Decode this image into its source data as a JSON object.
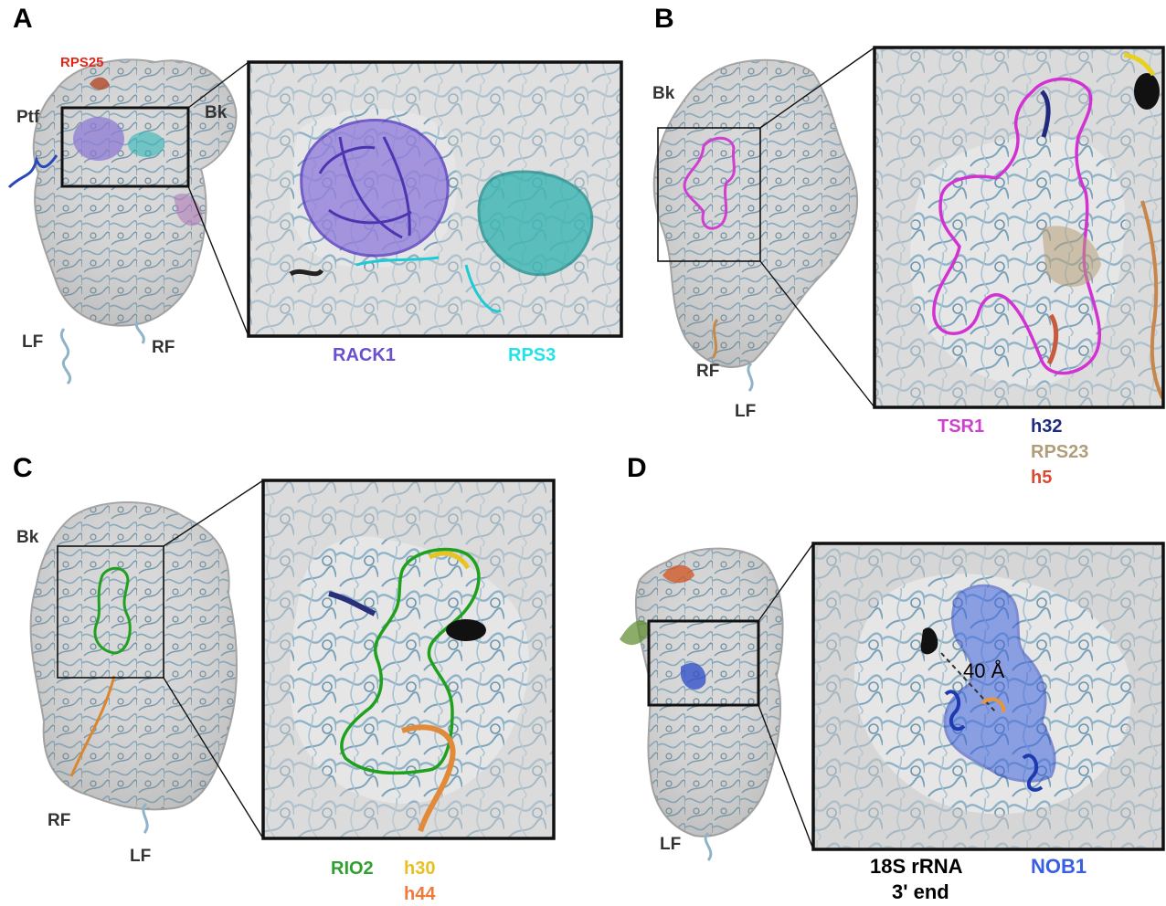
{
  "panels": {
    "A": {
      "letter": "A",
      "structure_labels": {
        "rps25": "RPS25",
        "ptf": "Ptf",
        "bk": "Bk",
        "lf": "LF",
        "rf": "RF"
      },
      "legend": [
        {
          "text": "RACK1",
          "color": "#6b4fd0"
        },
        {
          "text": "RPS3",
          "color": "#22e4e8"
        }
      ]
    },
    "B": {
      "letter": "B",
      "structure_labels": {
        "bk": "Bk",
        "rf": "RF",
        "lf": "LF"
      },
      "legend": [
        {
          "text": "TSR1",
          "color": "#cf3fd0"
        },
        {
          "text": "h32",
          "color": "#1e2a82"
        },
        {
          "text": "RPS23",
          "color": "#b09d7a"
        },
        {
          "text": "h5",
          "color": "#d94a30"
        }
      ]
    },
    "C": {
      "letter": "C",
      "structure_labels": {
        "bk": "Bk",
        "rf": "RF",
        "lf": "LF"
      },
      "legend": [
        {
          "text": "RIO2",
          "color": "#2fa02f"
        },
        {
          "text": "h30",
          "color": "#e8c020"
        },
        {
          "text": "h44",
          "color": "#f07a3a"
        }
      ]
    },
    "D": {
      "letter": "D",
      "structure_labels": {
        "lf": "LF"
      },
      "distance_label": "40 Å",
      "legend": [
        {
          "text": "18S rRNA",
          "color": "#000000"
        },
        {
          "text": "3' end",
          "color": "#000000"
        },
        {
          "text": "NOB1",
          "color": "#3a5fe0"
        }
      ]
    }
  },
  "colors": {
    "density": "#d9d9d9",
    "density_edge": "#a8a8a8",
    "rna_ribbon": "#86aec4",
    "inset_frame": "#111111"
  }
}
